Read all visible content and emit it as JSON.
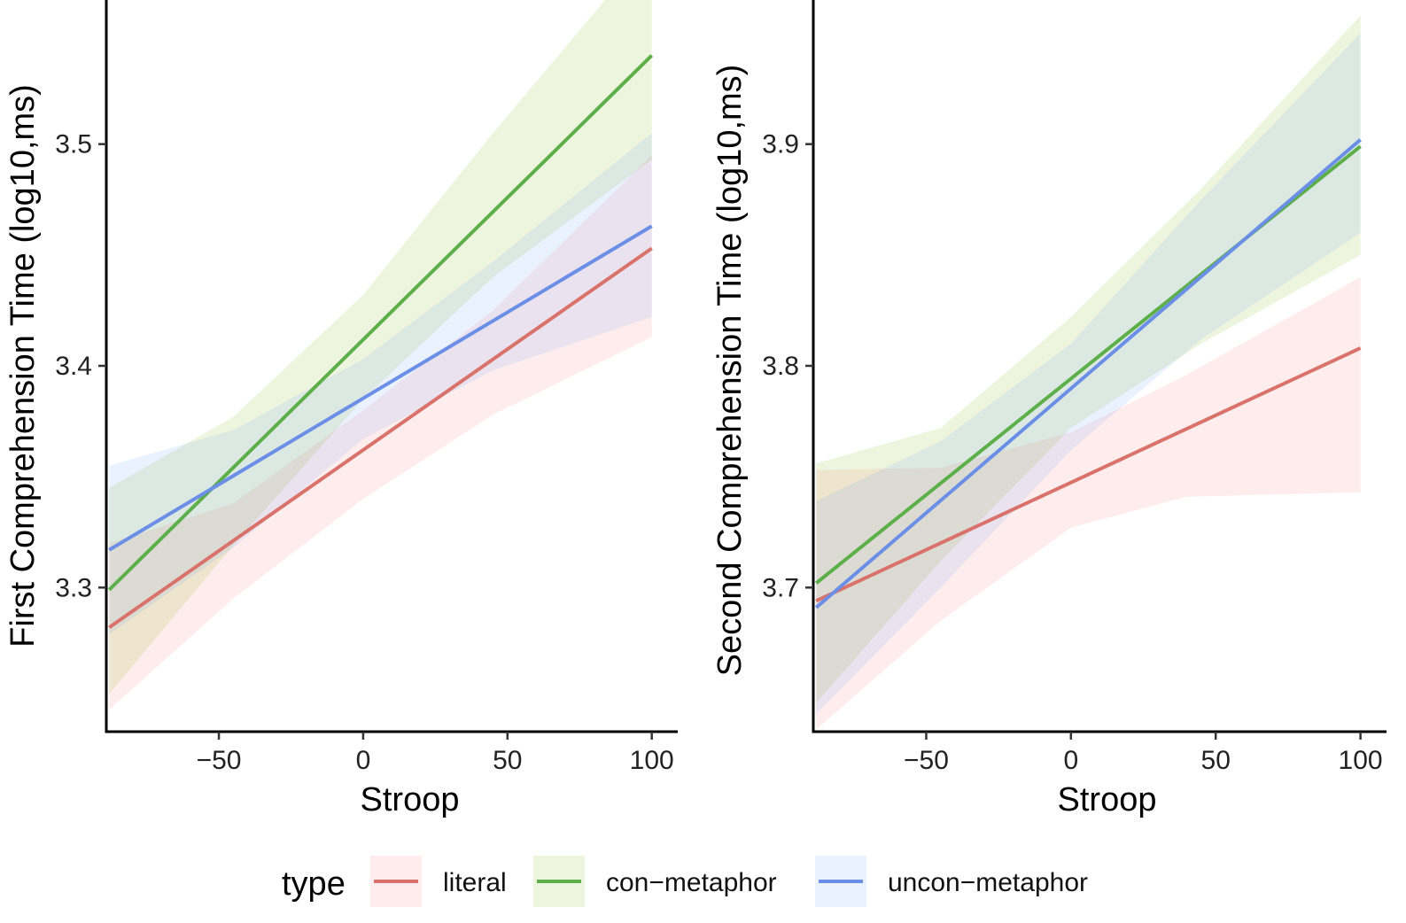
{
  "chart_data": [
    {
      "type": "line",
      "panel": "first",
      "xlabel": "Stroop",
      "ylabel": "First Comprehension Time (log10,ms)",
      "xlim": [
        -89,
        109
      ],
      "ylim": [
        3.235,
        3.565
      ],
      "x_ticks": [
        -50,
        0,
        50,
        100
      ],
      "y_ticks": [
        3.3,
        3.4,
        3.5
      ],
      "x_tick_labels": [
        "−50",
        "0",
        "50",
        "100"
      ],
      "y_tick_labels": [
        "3.3",
        "3.4",
        "3.5"
      ],
      "grid": false,
      "series": [
        {
          "name": "literal",
          "color": "#D9726A",
          "fill": "#F8766D",
          "x": [
            -88,
            100
          ],
          "y": [
            3.282,
            3.453
          ],
          "band_x": [
            -88,
            -45,
            0,
            45,
            100
          ],
          "band_lower": [
            3.245,
            3.295,
            3.34,
            3.378,
            3.413
          ],
          "band_upper": [
            3.32,
            3.338,
            3.38,
            3.425,
            3.495
          ]
        },
        {
          "name": "con−metaphor",
          "color": "#5DAF4A",
          "fill": "#7CAE00",
          "x": [
            -88,
            100
          ],
          "y": [
            3.299,
            3.54
          ],
          "band_x": [
            -88,
            -45,
            0,
            45,
            100
          ],
          "band_lower": [
            3.252,
            3.319,
            3.385,
            3.44,
            3.493
          ],
          "band_upper": [
            3.345,
            3.377,
            3.432,
            3.505,
            3.59
          ]
        },
        {
          "name": "uncon−metaphor",
          "color": "#6B8FE6",
          "fill": "#619CFF",
          "x": [
            -88,
            100
          ],
          "y": [
            3.317,
            3.463
          ],
          "band_x": [
            -88,
            -45,
            0,
            45,
            100
          ],
          "band_lower": [
            3.279,
            3.318,
            3.367,
            3.398,
            3.422
          ],
          "band_upper": [
            3.355,
            3.371,
            3.403,
            3.447,
            3.505
          ]
        }
      ]
    },
    {
      "type": "line",
      "panel": "second",
      "xlabel": "Stroop",
      "ylabel": "Second Comprehension Time (log10,ms)",
      "xlim": [
        -89,
        109
      ],
      "ylim": [
        3.635,
        3.965
      ],
      "x_ticks": [
        -50,
        0,
        50,
        100
      ],
      "y_ticks": [
        3.7,
        3.8,
        3.9
      ],
      "x_tick_labels": [
        "−50",
        "0",
        "50",
        "100"
      ],
      "y_tick_labels": [
        "3.7",
        "3.8",
        "3.9"
      ],
      "grid": false,
      "series": [
        {
          "name": "literal",
          "color": "#D9726A",
          "fill": "#F8766D",
          "x": [
            -88,
            100
          ],
          "y": [
            3.694,
            3.808
          ],
          "band_x": [
            -88,
            -45,
            0,
            40,
            100
          ],
          "band_lower": [
            3.636,
            3.685,
            3.727,
            3.741,
            3.743
          ],
          "band_upper": [
            3.753,
            3.754,
            3.77,
            3.796,
            3.84
          ]
        },
        {
          "name": "con−metaphor",
          "color": "#5DAF4A",
          "fill": "#7CAE00",
          "x": [
            -88,
            100
          ],
          "y": [
            3.702,
            3.899
          ],
          "band_x": [
            -88,
            -45,
            0,
            45,
            100
          ],
          "band_lower": [
            3.648,
            3.712,
            3.772,
            3.81,
            3.85
          ],
          "band_upper": [
            3.756,
            3.772,
            3.822,
            3.88,
            3.958
          ]
        },
        {
          "name": "uncon−metaphor",
          "color": "#6B8FE6",
          "fill": "#619CFF",
          "x": [
            -88,
            100
          ],
          "y": [
            3.691,
            3.902
          ],
          "band_x": [
            -88,
            -45,
            0,
            45,
            100
          ],
          "band_lower": [
            3.643,
            3.7,
            3.762,
            3.812,
            3.86
          ],
          "band_upper": [
            3.739,
            3.766,
            3.81,
            3.875,
            3.95
          ]
        }
      ]
    }
  ],
  "legend": {
    "title": "type",
    "position": "bottom",
    "items": [
      {
        "label": "literal",
        "color": "#D9726A",
        "fill": "#F8766D"
      },
      {
        "label": "con−metaphor",
        "color": "#5DAF4A",
        "fill": "#7CAE00"
      },
      {
        "label": "uncon−metaphor",
        "color": "#6B8FE6",
        "fill": "#619CFF"
      }
    ]
  }
}
